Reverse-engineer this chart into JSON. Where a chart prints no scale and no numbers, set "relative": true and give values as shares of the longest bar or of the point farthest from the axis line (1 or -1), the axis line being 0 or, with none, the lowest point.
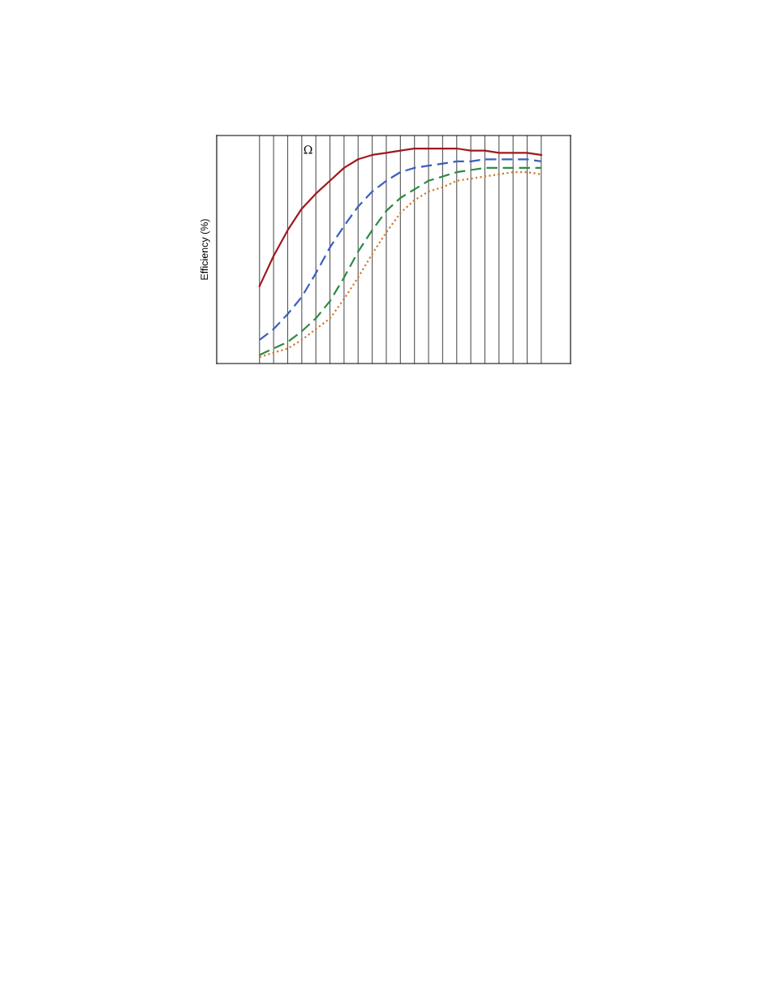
{
  "chart_data": {
    "type": "line",
    "ylabel": "Efficiency (%)",
    "relative": true,
    "grid": "x",
    "annotations": [
      "Ω"
    ],
    "categories": [
      null,
      null,
      null,
      null,
      null,
      null,
      null,
      null,
      null,
      null,
      null,
      null,
      null,
      null,
      null,
      null,
      null,
      null,
      null,
      null,
      null
    ],
    "series": [
      {
        "color": "#a0191e",
        "line_style": "solid",
        "values": [
          0.36,
          0.5,
          0.62,
          0.72,
          0.79,
          0.85,
          0.91,
          0.95,
          0.97,
          0.98,
          0.99,
          1.0,
          1.0,
          1.0,
          1.0,
          0.99,
          0.99,
          0.98,
          0.98,
          0.98,
          0.97
        ]
      },
      {
        "color": "#3a5fbf",
        "line_style": "dashed",
        "values": [
          0.11,
          0.16,
          0.23,
          0.31,
          0.42,
          0.54,
          0.64,
          0.73,
          0.8,
          0.85,
          0.89,
          0.91,
          0.92,
          0.93,
          0.94,
          0.94,
          0.95,
          0.95,
          0.95,
          0.95,
          0.94
        ]
      },
      {
        "color": "#2e8b45",
        "line_style": "dashed",
        "values": [
          0.04,
          0.07,
          0.1,
          0.15,
          0.21,
          0.29,
          0.4,
          0.52,
          0.62,
          0.71,
          0.77,
          0.81,
          0.85,
          0.87,
          0.89,
          0.9,
          0.91,
          0.91,
          0.91,
          0.91,
          0.91
        ]
      },
      {
        "color": "#d2782d",
        "line_style": "dotted",
        "values": [
          0.03,
          0.05,
          0.07,
          0.11,
          0.16,
          0.21,
          0.3,
          0.4,
          0.51,
          0.61,
          0.7,
          0.76,
          0.8,
          0.82,
          0.85,
          0.86,
          0.87,
          0.88,
          0.89,
          0.89,
          0.88
        ]
      }
    ]
  }
}
